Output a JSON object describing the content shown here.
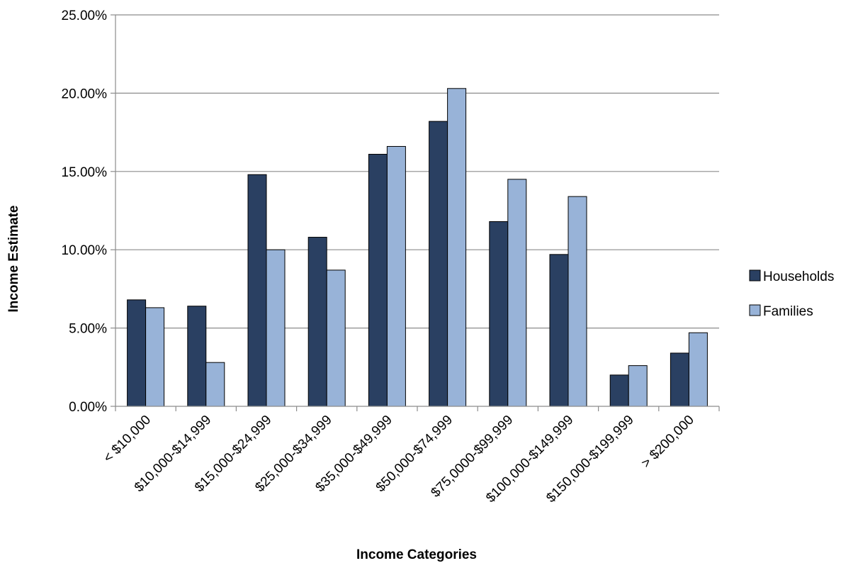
{
  "chart_data": {
    "type": "bar",
    "title": "",
    "xlabel": "Income Categories",
    "ylabel": "Income Estimate",
    "ylim": [
      0,
      25
    ],
    "yticks": [
      0,
      5,
      10,
      15,
      20,
      25
    ],
    "ytick_labels": [
      "0.00%",
      "5.00%",
      "10.00%",
      "15.00%",
      "20.00%",
      "25.00%"
    ],
    "grid": true,
    "legend_position": "right",
    "categories": [
      "< $10,000",
      "$10,000-$14,999",
      "$15,000-$24,999",
      "$25,000-$34,999",
      "$35,000-$49,999",
      "$50,000-$74,999",
      "$75,0000-$99,999",
      "$100,000-$149,999",
      "$150,000-$199,999",
      "> $200,000"
    ],
    "series": [
      {
        "name": "Households",
        "color": "#2a4062",
        "values": [
          6.8,
          6.4,
          14.8,
          10.8,
          16.1,
          18.2,
          11.8,
          9.7,
          2.0,
          3.4
        ]
      },
      {
        "name": "Families",
        "color": "#98b3d8",
        "values": [
          6.3,
          2.8,
          10.0,
          8.7,
          16.6,
          20.3,
          14.5,
          13.4,
          2.6,
          4.7
        ]
      }
    ]
  }
}
